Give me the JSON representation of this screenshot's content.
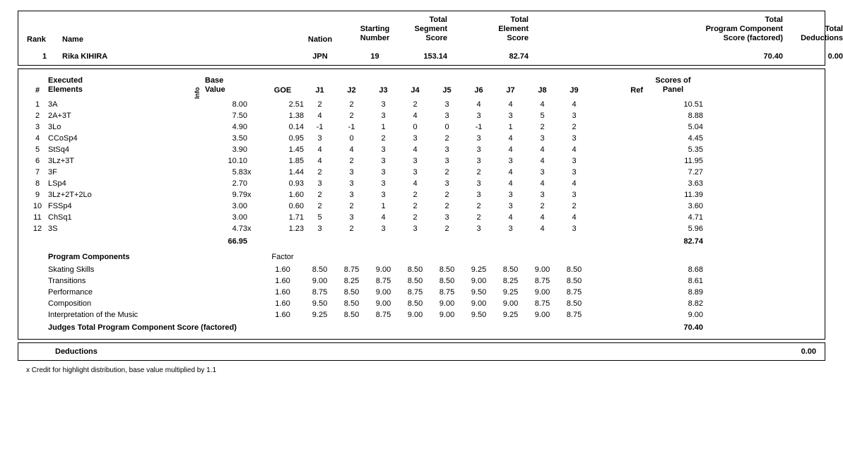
{
  "header": {
    "labels": {
      "rank": "Rank",
      "name": "Name",
      "nation": "Nation",
      "starting": "Starting\nNumber",
      "total_segment": "Total\nSegment\nScore",
      "total_element": "Total\nElement\nScore",
      "total_pcs": "Total\nProgram Component\nScore (factored)",
      "total_ded": "Total\nDeductions"
    },
    "values": {
      "rank": "1",
      "name": "Rika KIHIRA",
      "nation": "JPN",
      "starting": "19",
      "total_segment": "153.14",
      "total_element": "82.74",
      "total_pcs": "70.40",
      "total_ded": "0.00"
    }
  },
  "elements": {
    "col_labels": {
      "num": "#",
      "exec": "Executed\nElements",
      "info": "Info",
      "base": "Base\nValue",
      "goe": "GOE",
      "j1": "J1",
      "j2": "J2",
      "j3": "J3",
      "j4": "J4",
      "j5": "J5",
      "j6": "J6",
      "j7": "J7",
      "j8": "J8",
      "j9": "J9",
      "ref": "Ref",
      "sop": "Scores of\nPanel"
    },
    "rows": [
      {
        "n": "1",
        "el": "3A",
        "info": "",
        "base": "8.00",
        "x": "",
        "goe": "2.51",
        "j": [
          "2",
          "2",
          "3",
          "2",
          "3",
          "4",
          "4",
          "4",
          "4"
        ],
        "sop": "10.51"
      },
      {
        "n": "2",
        "el": "2A+3T",
        "info": "",
        "base": "7.50",
        "x": "",
        "goe": "1.38",
        "j": [
          "4",
          "2",
          "3",
          "4",
          "3",
          "3",
          "3",
          "5",
          "3"
        ],
        "sop": "8.88"
      },
      {
        "n": "3",
        "el": "3Lo",
        "info": "",
        "base": "4.90",
        "x": "",
        "goe": "0.14",
        "j": [
          "-1",
          "-1",
          "1",
          "0",
          "0",
          "-1",
          "1",
          "2",
          "2"
        ],
        "sop": "5.04"
      },
      {
        "n": "4",
        "el": "CCoSp4",
        "info": "",
        "base": "3.50",
        "x": "",
        "goe": "0.95",
        "j": [
          "3",
          "0",
          "2",
          "3",
          "2",
          "3",
          "4",
          "3",
          "3"
        ],
        "sop": "4.45"
      },
      {
        "n": "5",
        "el": "StSq4",
        "info": "",
        "base": "3.90",
        "x": "",
        "goe": "1.45",
        "j": [
          "4",
          "4",
          "3",
          "4",
          "3",
          "3",
          "4",
          "4",
          "4"
        ],
        "sop": "5.35"
      },
      {
        "n": "6",
        "el": "3Lz+3T",
        "info": "",
        "base": "10.10",
        "x": "",
        "goe": "1.85",
        "j": [
          "4",
          "2",
          "3",
          "3",
          "3",
          "3",
          "3",
          "4",
          "3"
        ],
        "sop": "11.95"
      },
      {
        "n": "7",
        "el": "3F",
        "info": "",
        "base": "5.83",
        "x": "x",
        "goe": "1.44",
        "j": [
          "2",
          "3",
          "3",
          "3",
          "2",
          "2",
          "4",
          "3",
          "3"
        ],
        "sop": "7.27"
      },
      {
        "n": "8",
        "el": "LSp4",
        "info": "",
        "base": "2.70",
        "x": "",
        "goe": "0.93",
        "j": [
          "3",
          "3",
          "3",
          "4",
          "3",
          "3",
          "4",
          "4",
          "4"
        ],
        "sop": "3.63"
      },
      {
        "n": "9",
        "el": "3Lz+2T+2Lo",
        "info": "",
        "base": "9.79",
        "x": "x",
        "goe": "1.60",
        "j": [
          "2",
          "3",
          "3",
          "2",
          "2",
          "3",
          "3",
          "3",
          "3"
        ],
        "sop": "11.39"
      },
      {
        "n": "10",
        "el": "FSSp4",
        "info": "",
        "base": "3.00",
        "x": "",
        "goe": "0.60",
        "j": [
          "2",
          "2",
          "1",
          "2",
          "2",
          "2",
          "3",
          "2",
          "2"
        ],
        "sop": "3.60"
      },
      {
        "n": "11",
        "el": "ChSq1",
        "info": "",
        "base": "3.00",
        "x": "",
        "goe": "1.71",
        "j": [
          "5",
          "3",
          "4",
          "2",
          "3",
          "2",
          "4",
          "4",
          "4"
        ],
        "sop": "4.71"
      },
      {
        "n": "12",
        "el": "3S",
        "info": "",
        "base": "4.73",
        "x": "x",
        "goe": "1.23",
        "j": [
          "3",
          "2",
          "3",
          "3",
          "2",
          "3",
          "3",
          "4",
          "3"
        ],
        "sop": "5.96"
      }
    ],
    "total_base": "66.95",
    "total_sop": "82.74"
  },
  "components": {
    "title": "Program Components",
    "factor_label": "Factor",
    "rows": [
      {
        "name": "Skating Skills",
        "factor": "1.60",
        "j": [
          "8.50",
          "8.75",
          "9.00",
          "8.50",
          "8.50",
          "9.25",
          "8.50",
          "9.00",
          "8.50"
        ],
        "score": "8.68"
      },
      {
        "name": "Transitions",
        "factor": "1.60",
        "j": [
          "9.00",
          "8.25",
          "8.75",
          "8.50",
          "8.50",
          "9.00",
          "8.25",
          "8.75",
          "8.50"
        ],
        "score": "8.61"
      },
      {
        "name": "Performance",
        "factor": "1.60",
        "j": [
          "8.75",
          "8.50",
          "9.00",
          "8.75",
          "8.75",
          "9.50",
          "9.25",
          "9.00",
          "8.75"
        ],
        "score": "8.89"
      },
      {
        "name": "Composition",
        "factor": "1.60",
        "j": [
          "9.50",
          "8.50",
          "9.00",
          "8.50",
          "9.00",
          "9.00",
          "9.00",
          "8.75",
          "8.50"
        ],
        "score": "8.82"
      },
      {
        "name": "Interpretation of the Music",
        "factor": "1.60",
        "j": [
          "9.25",
          "8.50",
          "8.75",
          "9.00",
          "9.00",
          "9.50",
          "9.25",
          "9.00",
          "8.75"
        ],
        "score": "9.00"
      }
    ],
    "total_label": "Judges Total Program Component Score (factored)",
    "total": "70.40"
  },
  "deductions": {
    "label": "Deductions",
    "value": "0.00"
  },
  "footnote": "x  Credit for highlight distribution, base value multiplied by 1.1"
}
